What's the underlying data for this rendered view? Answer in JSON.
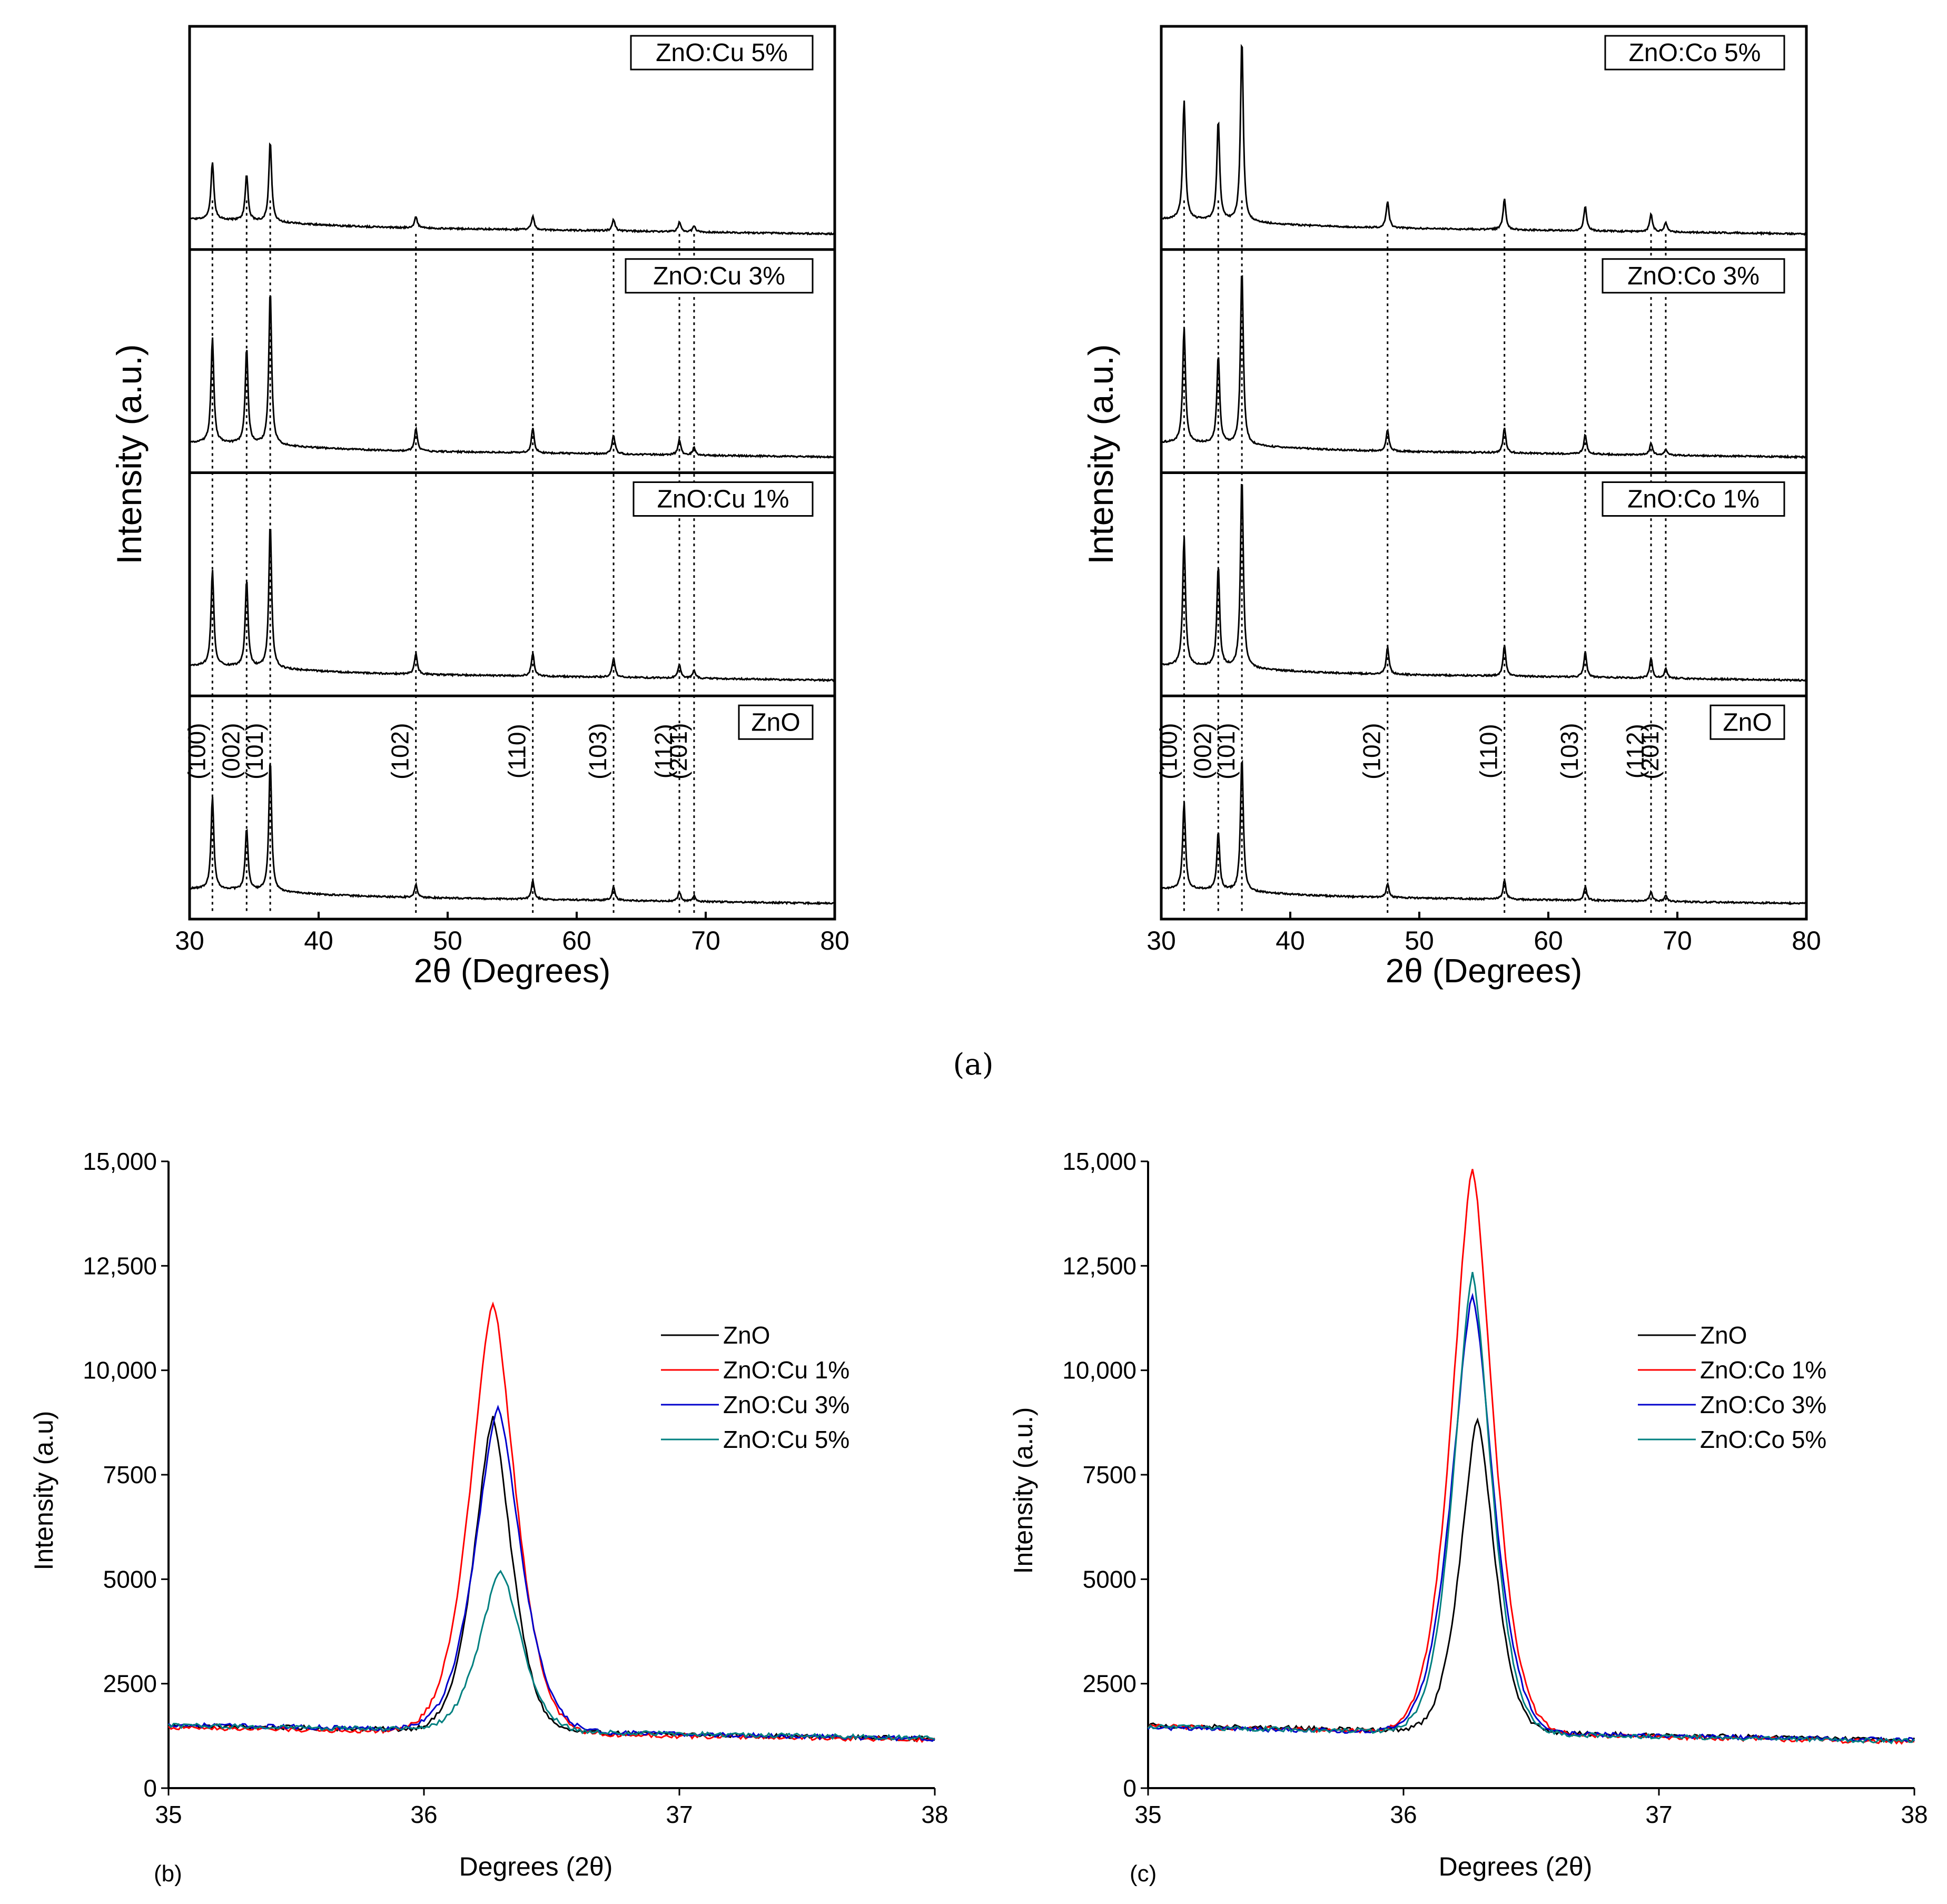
{
  "figure": {
    "caption_a": "(a)",
    "caption_b": "(b)",
    "caption_c": "(c)"
  },
  "chart_data": [
    {
      "id": "a-left",
      "type": "line",
      "title": "",
      "xlabel": "2θ (Degrees)",
      "ylabel": "Intensity (a.u.)",
      "xlim": [
        30,
        80
      ],
      "xticks": [
        "30",
        "40",
        "50",
        "60",
        "70",
        "80"
      ],
      "peaks_2theta": [
        31.77,
        34.42,
        36.25,
        47.54,
        56.6,
        62.86,
        67.96,
        69.1
      ],
      "miller_indices": [
        "(100)",
        "(002)",
        "(101)",
        "(102)",
        "(110)",
        "(103)",
        "(112)",
        "(201)"
      ],
      "panels": [
        {
          "label": "ZnO:Cu 5%",
          "rel_heights": [
            0.3,
            0.24,
            0.42,
            0.06,
            0.07,
            0.06,
            0.05,
            0.03
          ]
        },
        {
          "label": "ZnO:Cu 3%",
          "rel_heights": [
            0.55,
            0.5,
            0.8,
            0.12,
            0.13,
            0.1,
            0.08,
            0.04
          ]
        },
        {
          "label": "ZnO:Cu 1%",
          "rel_heights": [
            0.5,
            0.45,
            0.75,
            0.11,
            0.12,
            0.1,
            0.07,
            0.04
          ]
        },
        {
          "label": "ZnO",
          "rel_heights": [
            0.48,
            0.32,
            0.68,
            0.07,
            0.1,
            0.07,
            0.05,
            0.03
          ]
        }
      ]
    },
    {
      "id": "a-right",
      "type": "line",
      "title": "",
      "xlabel": "2θ (Degrees)",
      "ylabel": "Intensity (a.u.)",
      "xlim": [
        30,
        80
      ],
      "xticks": [
        "30",
        "40",
        "50",
        "60",
        "70",
        "80"
      ],
      "peaks_2theta": [
        31.77,
        34.42,
        36.25,
        47.54,
        56.6,
        62.86,
        67.96,
        69.1
      ],
      "miller_indices": [
        "(100)",
        "(002)",
        "(101)",
        "(102)",
        "(110)",
        "(103)",
        "(112)",
        "(201)"
      ],
      "panels": [
        {
          "label": "ZnO:Co 5%",
          "rel_heights": [
            0.62,
            0.52,
            0.95,
            0.14,
            0.16,
            0.13,
            0.09,
            0.05
          ]
        },
        {
          "label": "ZnO:Co 3%",
          "rel_heights": [
            0.6,
            0.46,
            0.92,
            0.11,
            0.13,
            0.1,
            0.06,
            0.03
          ]
        },
        {
          "label": "ZnO:Co 1%",
          "rel_heights": [
            0.67,
            0.52,
            1.0,
            0.14,
            0.16,
            0.13,
            0.1,
            0.05
          ]
        },
        {
          "label": "ZnO",
          "rel_heights": [
            0.45,
            0.3,
            0.7,
            0.07,
            0.1,
            0.07,
            0.05,
            0.03
          ]
        }
      ]
    },
    {
      "id": "b",
      "type": "line",
      "title": "",
      "xlabel": "Degrees (2θ)",
      "ylabel": "Intensity (a.u)",
      "xlim": [
        35,
        38
      ],
      "ylim": [
        0,
        15000
      ],
      "xticks": [
        "35",
        "36",
        "37",
        "38"
      ],
      "yticks": [
        "0",
        "2500",
        "5000",
        "7500",
        "10,000",
        "12,500",
        "15,000"
      ],
      "series": [
        {
          "name": "ZnO",
          "color": "#000000",
          "peak_x": 36.27,
          "peak_y": 9000,
          "baseline_left": 1500,
          "baseline_right": 1180,
          "width": 0.1
        },
        {
          "name": "ZnO:Cu 1%",
          "color": "#ff0000",
          "peak_x": 36.27,
          "peak_y": 11750,
          "baseline_left": 1450,
          "baseline_right": 1150,
          "width": 0.12
        },
        {
          "name": "ZnO:Cu 3%",
          "color": "#0000cc",
          "peak_x": 36.29,
          "peak_y": 9250,
          "baseline_left": 1520,
          "baseline_right": 1180,
          "width": 0.12
        },
        {
          "name": "ZnO:Cu 5%",
          "color": "#008080",
          "peak_x": 36.3,
          "peak_y": 5350,
          "baseline_left": 1500,
          "baseline_right": 1200,
          "width": 0.11
        }
      ]
    },
    {
      "id": "c",
      "type": "line",
      "title": "",
      "xlabel": "Degrees (2θ)",
      "ylabel": "Intensity (a.u.)",
      "xlim": [
        35,
        38
      ],
      "ylim": [
        0,
        15000
      ],
      "xticks": [
        "35",
        "36",
        "37",
        "38"
      ],
      "yticks": [
        "0",
        "2500",
        "5000",
        "7500",
        "10,000",
        "12,500",
        "15,000"
      ],
      "series": [
        {
          "name": "ZnO",
          "color": "#000000",
          "peak_x": 36.29,
          "peak_y": 9000,
          "baseline_left": 1500,
          "baseline_right": 1150,
          "width": 0.09
        },
        {
          "name": "ZnO:Co 1%",
          "color": "#ff0000",
          "peak_x": 36.27,
          "peak_y": 15000,
          "baseline_left": 1480,
          "baseline_right": 1100,
          "width": 0.11
        },
        {
          "name": "ZnO:Co 3%",
          "color": "#0000cc",
          "peak_x": 36.27,
          "peak_y": 11900,
          "baseline_left": 1450,
          "baseline_right": 1150,
          "width": 0.11
        },
        {
          "name": "ZnO:Co 5%",
          "color": "#008080",
          "peak_x": 36.27,
          "peak_y": 12450,
          "baseline_left": 1470,
          "baseline_right": 1120,
          "width": 0.1
        }
      ]
    }
  ]
}
